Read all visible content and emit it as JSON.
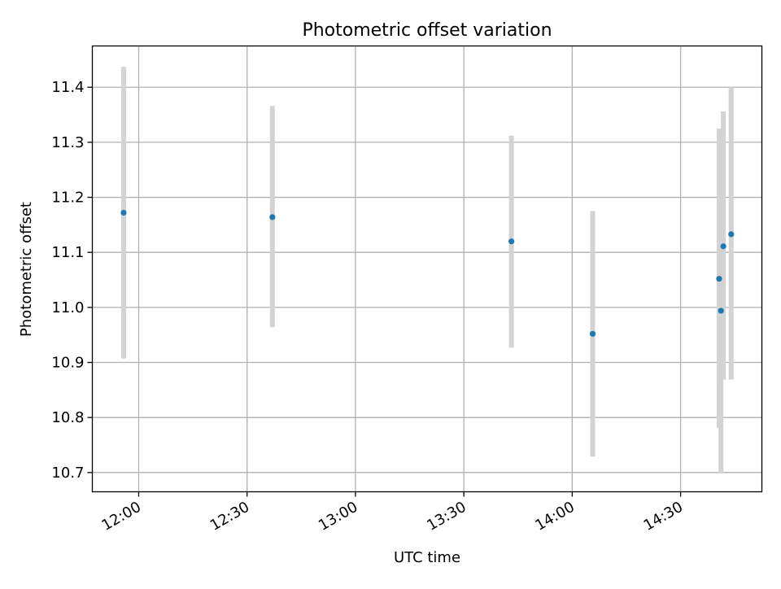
{
  "chart_data": {
    "type": "scatter",
    "title": "Photometric offset variation",
    "xlabel": "UTC time",
    "ylabel": "Photometric offset",
    "x_tick_labels": [
      "12:00",
      "12:30",
      "13:00",
      "13:30",
      "14:00",
      "14:30"
    ],
    "x_ticks": [
      "12:00",
      "12:30",
      "13:00",
      "13:30",
      "14:00",
      "14:30"
    ],
    "y_ticks": [
      10.7,
      10.8,
      10.9,
      11.0,
      11.1,
      11.2,
      11.3,
      11.4
    ],
    "y_tick_labels": [
      "10.7",
      "10.8",
      "10.9",
      "11.0",
      "11.1",
      "11.2",
      "11.3",
      "11.4"
    ],
    "xlim": [
      "11:47:10",
      "14:52:30"
    ],
    "ylim": [
      10.665,
      11.475
    ],
    "grid": true,
    "colors": {
      "points": "#1f77b4",
      "error_bars": "#d3d3d3",
      "grid": "#b0b0b0",
      "axes": "#000000"
    },
    "series": [
      {
        "points": [
          {
            "x": "11:55:50",
            "y": 11.172,
            "ymin": 10.907,
            "ymax": 11.437
          },
          {
            "x": "12:37:00",
            "y": 11.164,
            "ymin": 10.964,
            "ymax": 11.366
          },
          {
            "x": "13:43:10",
            "y": 11.12,
            "ymin": 10.927,
            "ymax": 11.312
          },
          {
            "x": "14:05:40",
            "y": 10.952,
            "ymin": 10.729,
            "ymax": 11.175
          },
          {
            "x": "14:40:40",
            "y": 11.052,
            "ymin": 10.781,
            "ymax": 11.325
          },
          {
            "x": "14:41:10",
            "y": 10.994,
            "ymin": 10.698,
            "ymax": 11.292
          },
          {
            "x": "14:41:50",
            "y": 11.111,
            "ymin": 10.869,
            "ymax": 11.356
          },
          {
            "x": "14:44:00",
            "y": 11.133,
            "ymin": 10.869,
            "ymax": 11.4
          }
        ]
      }
    ]
  }
}
